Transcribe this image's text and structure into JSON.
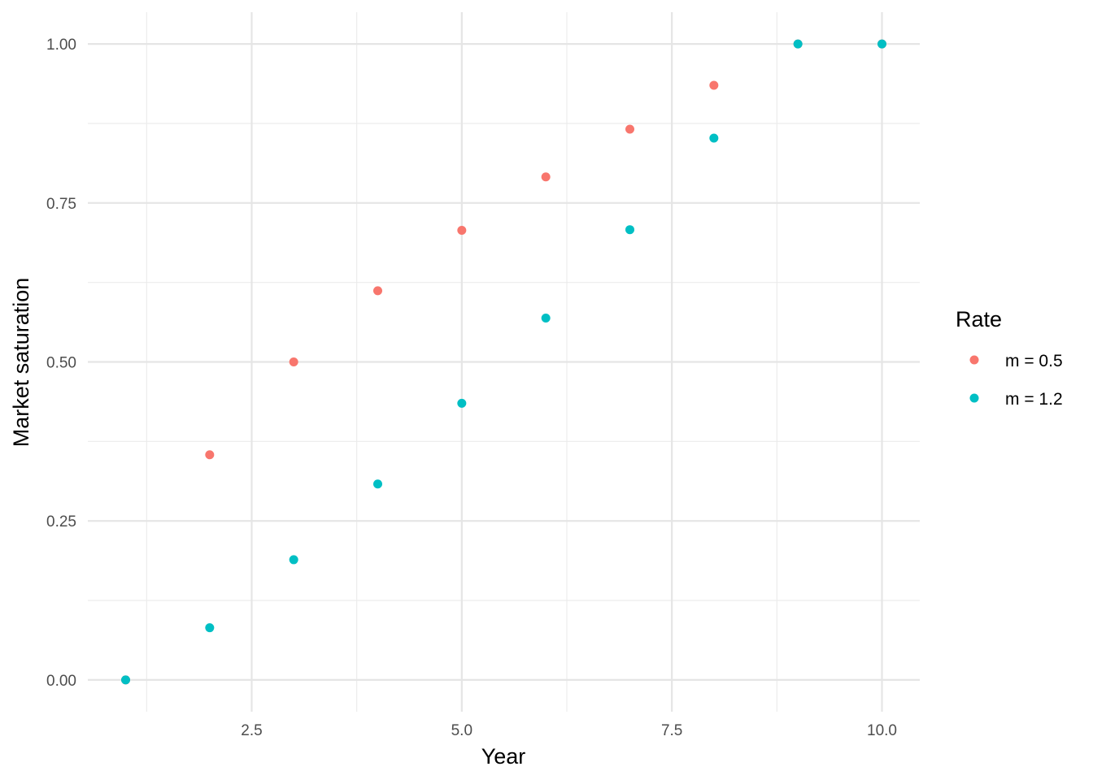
{
  "chart_data": {
    "type": "scatter",
    "title": "",
    "xlabel": "Year",
    "ylabel": "Market saturation",
    "xlim": [
      0.55,
      10.45
    ],
    "ylim": [
      -0.05,
      1.05
    ],
    "x_ticks": [
      2.5,
      5.0,
      7.5,
      10.0
    ],
    "x_tick_labels": [
      "2.5",
      "5.0",
      "7.5",
      "10.0"
    ],
    "y_ticks": [
      0,
      0.25,
      0.5,
      0.75,
      1.0
    ],
    "y_tick_labels": [
      "0.00",
      "0.25",
      "0.50",
      "0.75",
      "1.00"
    ],
    "grid": true,
    "legend": {
      "title": "Rate",
      "position": "right"
    },
    "x": [
      1,
      2,
      3,
      4,
      5,
      6,
      7,
      8,
      9,
      10
    ],
    "series": [
      {
        "name": "m = 0.5",
        "color": "#F8766D",
        "values": [
          0,
          0.354,
          0.5,
          0.612,
          0.707,
          0.791,
          0.866,
          0.935,
          1.0,
          1.0
        ]
      },
      {
        "name": "m = 1.2",
        "color": "#00BFC4",
        "values": [
          0,
          0.082,
          0.189,
          0.308,
          0.435,
          0.569,
          0.708,
          0.852,
          1.0,
          1.0
        ]
      }
    ]
  }
}
